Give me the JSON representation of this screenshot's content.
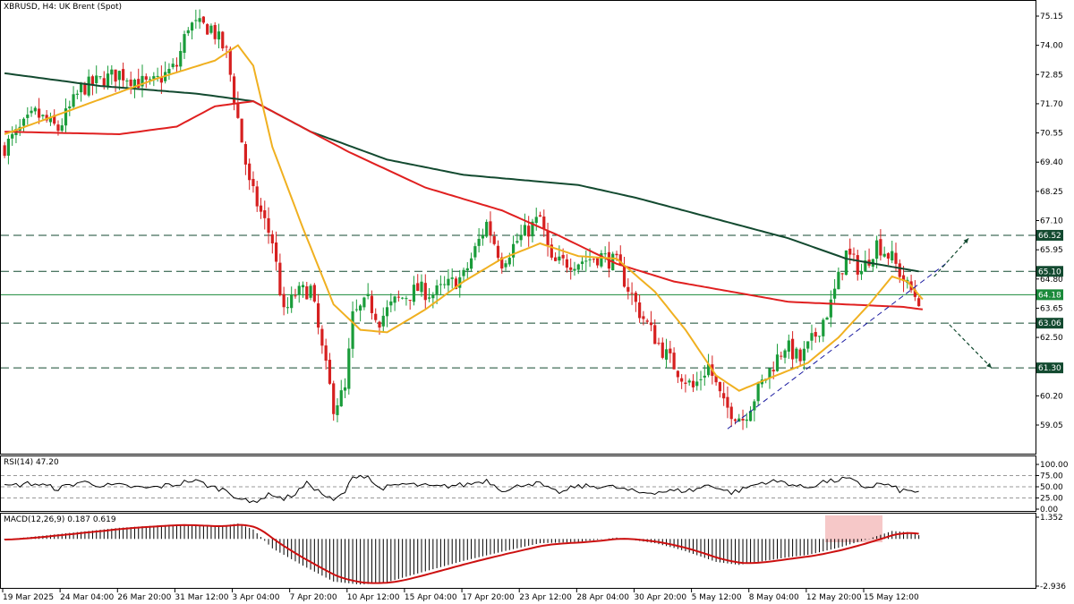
{
  "header": {
    "main_title": "XBRUSD, H4:  UK Brent (Spot)",
    "rsi_title": "RSI(14) 47.20",
    "macd_title": "MACD(12,26,9) 0.187 0.619"
  },
  "colors": {
    "candle_up": "#1a9c3a",
    "candle_down": "#d62020",
    "ma_fast": "#f0b020",
    "ma_mid": "#e02020",
    "ma_slow": "#134a30",
    "trendline": "#1a1aa0",
    "level_line": "#134a30",
    "current_line": "#1a8a3a",
    "macd_signal": "#cc1010",
    "macd_highlight": "#f6c8c8",
    "rsi_line": "#000000"
  },
  "chart_data": {
    "type": "candlestick",
    "symbol": "XBRUSD",
    "timeframe": "H4",
    "ylim": [
      58.55,
      75.55
    ],
    "y_ticks": [
      "75.15",
      "74.00",
      "72.85",
      "71.70",
      "70.55",
      "69.40",
      "68.25",
      "67.10",
      "65.95",
      "64.80",
      "63.65",
      "62.50",
      "61.35",
      "60.20",
      "59.05"
    ],
    "x_labels": [
      "19 Mar 2025",
      "24 Mar 04:00",
      "26 Mar 20:00",
      "31 Mar 12:00",
      "3 Apr 04:00",
      "7 Apr 20:00",
      "10 Apr 12:00",
      "15 Apr 04:00",
      "17 Apr 20:00",
      "23 Apr 12:00",
      "28 Apr 04:00",
      "30 Apr 20:00",
      "5 May 12:00",
      "8 May 04:00",
      "12 May 20:00",
      "15 May 12:00"
    ],
    "horizontal_levels": [
      {
        "label": "66.52",
        "value": 66.52
      },
      {
        "label": "65.10",
        "value": 65.1
      },
      {
        "label": "63.06",
        "value": 63.06
      },
      {
        "label": "61.30",
        "value": 61.3
      }
    ],
    "current_price": {
      "label": "64.18",
      "value": 64.18
    },
    "price_path": [
      [
        0,
        70.0
      ],
      [
        8,
        71.3
      ],
      [
        14,
        70.7
      ],
      [
        20,
        72.3
      ],
      [
        30,
        72.9
      ],
      [
        38,
        72.4
      ],
      [
        45,
        73.2
      ],
      [
        48,
        74.8
      ],
      [
        54,
        74.7
      ],
      [
        58,
        73.7
      ],
      [
        64,
        68.5
      ],
      [
        70,
        66.3
      ],
      [
        73,
        63.4
      ],
      [
        76,
        64.2
      ],
      [
        80,
        64.4
      ],
      [
        83,
        62.0
      ],
      [
        86,
        59.8
      ],
      [
        89,
        60.4
      ],
      [
        91,
        63.3
      ],
      [
        95,
        63.9
      ],
      [
        98,
        63.2
      ],
      [
        102,
        63.9
      ],
      [
        108,
        64.4
      ],
      [
        112,
        64.2
      ],
      [
        120,
        64.9
      ],
      [
        126,
        67.0
      ],
      [
        130,
        65.5
      ],
      [
        134,
        66.3
      ],
      [
        140,
        67.2
      ],
      [
        143,
        65.4
      ],
      [
        150,
        65.5
      ],
      [
        156,
        65.7
      ],
      [
        160,
        65.4
      ],
      [
        166,
        63.5
      ],
      [
        172,
        62.0
      ],
      [
        176,
        61.2
      ],
      [
        180,
        60.5
      ],
      [
        184,
        61.4
      ],
      [
        188,
        59.8
      ],
      [
        193,
        59.3
      ],
      [
        198,
        60.7
      ],
      [
        204,
        62.2
      ],
      [
        208,
        61.6
      ],
      [
        212,
        62.6
      ],
      [
        216,
        63.8
      ],
      [
        220,
        65.8
      ],
      [
        224,
        65.1
      ],
      [
        228,
        66.2
      ],
      [
        232,
        65.6
      ],
      [
        236,
        64.5
      ],
      [
        239,
        64.0
      ]
    ],
    "ma_fast": [
      [
        0,
        70.5
      ],
      [
        20,
        71.6
      ],
      [
        40,
        72.7
      ],
      [
        55,
        73.4
      ],
      [
        61,
        74.0
      ],
      [
        65,
        73.2
      ],
      [
        70,
        70.0
      ],
      [
        78,
        66.8
      ],
      [
        86,
        63.8
      ],
      [
        93,
        62.8
      ],
      [
        100,
        62.7
      ],
      [
        110,
        63.6
      ],
      [
        120,
        64.7
      ],
      [
        130,
        65.6
      ],
      [
        140,
        66.2
      ],
      [
        150,
        65.7
      ],
      [
        160,
        65.6
      ],
      [
        170,
        64.3
      ],
      [
        178,
        62.8
      ],
      [
        186,
        61.0
      ],
      [
        192,
        60.4
      ],
      [
        200,
        60.9
      ],
      [
        210,
        61.5
      ],
      [
        218,
        62.5
      ],
      [
        226,
        63.8
      ],
      [
        232,
        64.9
      ],
      [
        236,
        64.7
      ],
      [
        240,
        64.0
      ]
    ],
    "ma_mid": [
      [
        0,
        70.6
      ],
      [
        30,
        70.5
      ],
      [
        45,
        70.8
      ],
      [
        55,
        71.6
      ],
      [
        65,
        71.8
      ],
      [
        75,
        71.0
      ],
      [
        90,
        69.8
      ],
      [
        110,
        68.4
      ],
      [
        130,
        67.5
      ],
      [
        145,
        66.5
      ],
      [
        160,
        65.4
      ],
      [
        175,
        64.7
      ],
      [
        190,
        64.3
      ],
      [
        205,
        63.9
      ],
      [
        220,
        63.8
      ],
      [
        235,
        63.7
      ],
      [
        240,
        63.6
      ]
    ],
    "ma_slow": [
      [
        0,
        72.9
      ],
      [
        25,
        72.4
      ],
      [
        50,
        72.1
      ],
      [
        65,
        71.8
      ],
      [
        80,
        70.6
      ],
      [
        100,
        69.5
      ],
      [
        120,
        68.9
      ],
      [
        150,
        68.5
      ],
      [
        165,
        68.0
      ],
      [
        185,
        67.2
      ],
      [
        205,
        66.4
      ],
      [
        220,
        65.6
      ],
      [
        235,
        65.2
      ],
      [
        239,
        65.1
      ]
    ],
    "x_range": [
      0,
      270
    ],
    "rsi": {
      "value": 47.2,
      "levels": [
        "100.00",
        "75.00",
        "50.00",
        "25.00",
        "0.00"
      ]
    },
    "macd": {
      "main": 0.187,
      "signal": 0.619,
      "ylim": [
        -2.936,
        1.352
      ],
      "ticks": [
        "1.352",
        "-2.936"
      ]
    }
  }
}
